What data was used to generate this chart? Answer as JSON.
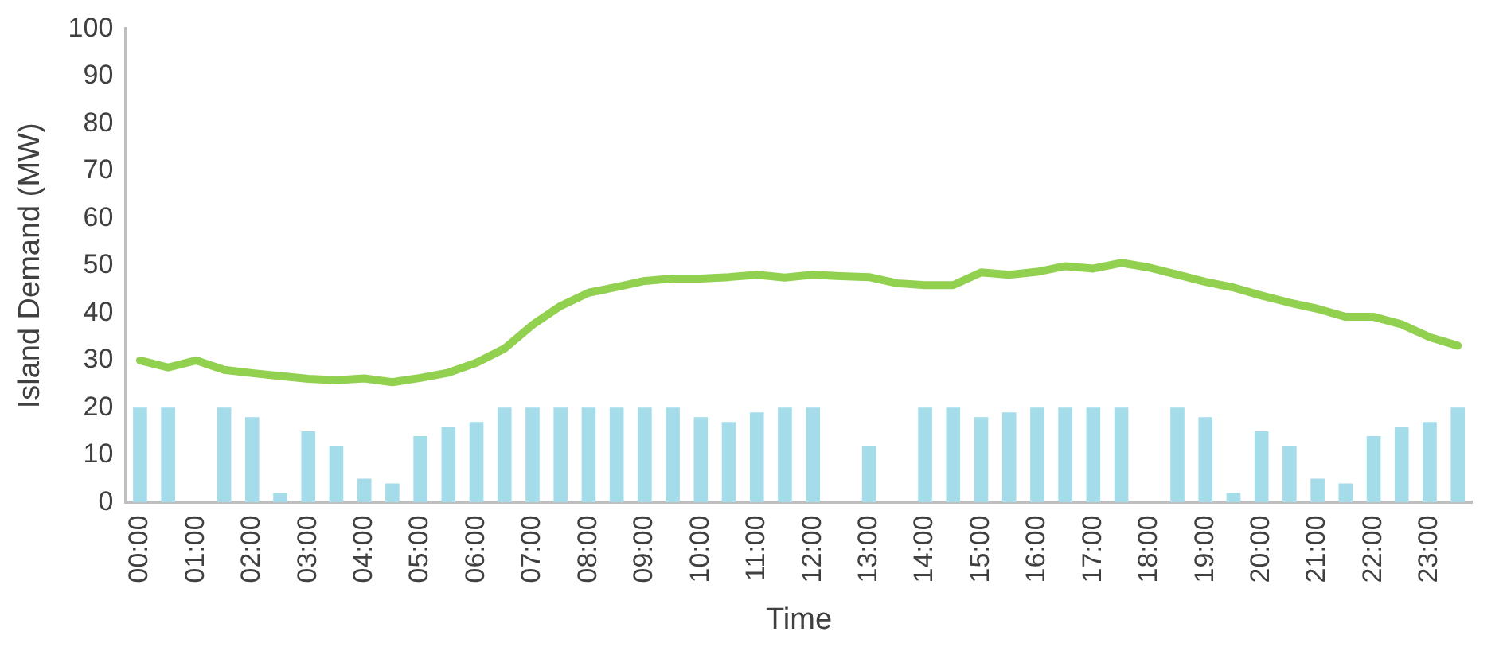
{
  "chart_data": {
    "type": "bar",
    "xlabel": "Time",
    "ylabel": "Island Demand (MW)",
    "categories": [
      "00:00",
      null,
      "01:00",
      null,
      "02:00",
      null,
      "03:00",
      null,
      "04:00",
      null,
      "05:00",
      null,
      "06:00",
      null,
      "07:00",
      null,
      "08:00",
      null,
      "09:00",
      null,
      "10:00",
      null,
      "11:00",
      null,
      "12:00",
      null,
      "13:00",
      null,
      "14:00",
      null,
      "15:00",
      null,
      "16:00",
      null,
      "17:00",
      null,
      "18:00",
      null,
      "19:00",
      null,
      "20:00",
      null,
      "21:00",
      null,
      "22:00",
      null,
      "23:00",
      null
    ],
    "series": [
      {
        "color": "#a5dcea",
        "values": [
          20,
          20,
          0,
          20,
          18,
          2,
          15,
          12,
          5,
          4,
          14,
          16,
          17,
          20,
          20,
          20,
          20,
          20,
          20,
          20,
          18,
          17,
          19,
          20,
          20,
          0,
          12,
          0,
          20,
          20,
          18,
          19,
          20,
          20,
          20,
          20,
          0,
          20,
          18,
          2,
          15,
          12,
          5,
          4,
          14,
          16,
          17,
          20
        ]
      },
      {
        "type": "line",
        "color": "#92d050",
        "values": [
          30,
          28.5,
          30,
          28,
          27.3,
          26.7,
          26.1,
          25.8,
          26.2,
          25.4,
          26.3,
          27.4,
          29.5,
          32.5,
          37.5,
          41.5,
          44.3,
          45.5,
          46.8,
          47.3,
          47.3,
          47.6,
          48.1,
          47.5,
          48.1,
          47.8,
          47.6,
          46.3,
          45.9,
          45.9,
          48.6,
          48.1,
          48.7,
          49.9,
          49.4,
          50.6,
          49.6,
          48.1,
          46.6,
          45.4,
          43.7,
          42.2,
          40.9,
          39.2,
          39.2,
          37.6,
          34.9,
          33.1
        ]
      }
    ],
    "ylim": [
      0,
      100
    ],
    "yticks": [
      0,
      10,
      20,
      30,
      40,
      50,
      60,
      70,
      80,
      90,
      100
    ],
    "grid": false,
    "legend": false,
    "marker": "none",
    "line_style": "solid"
  }
}
